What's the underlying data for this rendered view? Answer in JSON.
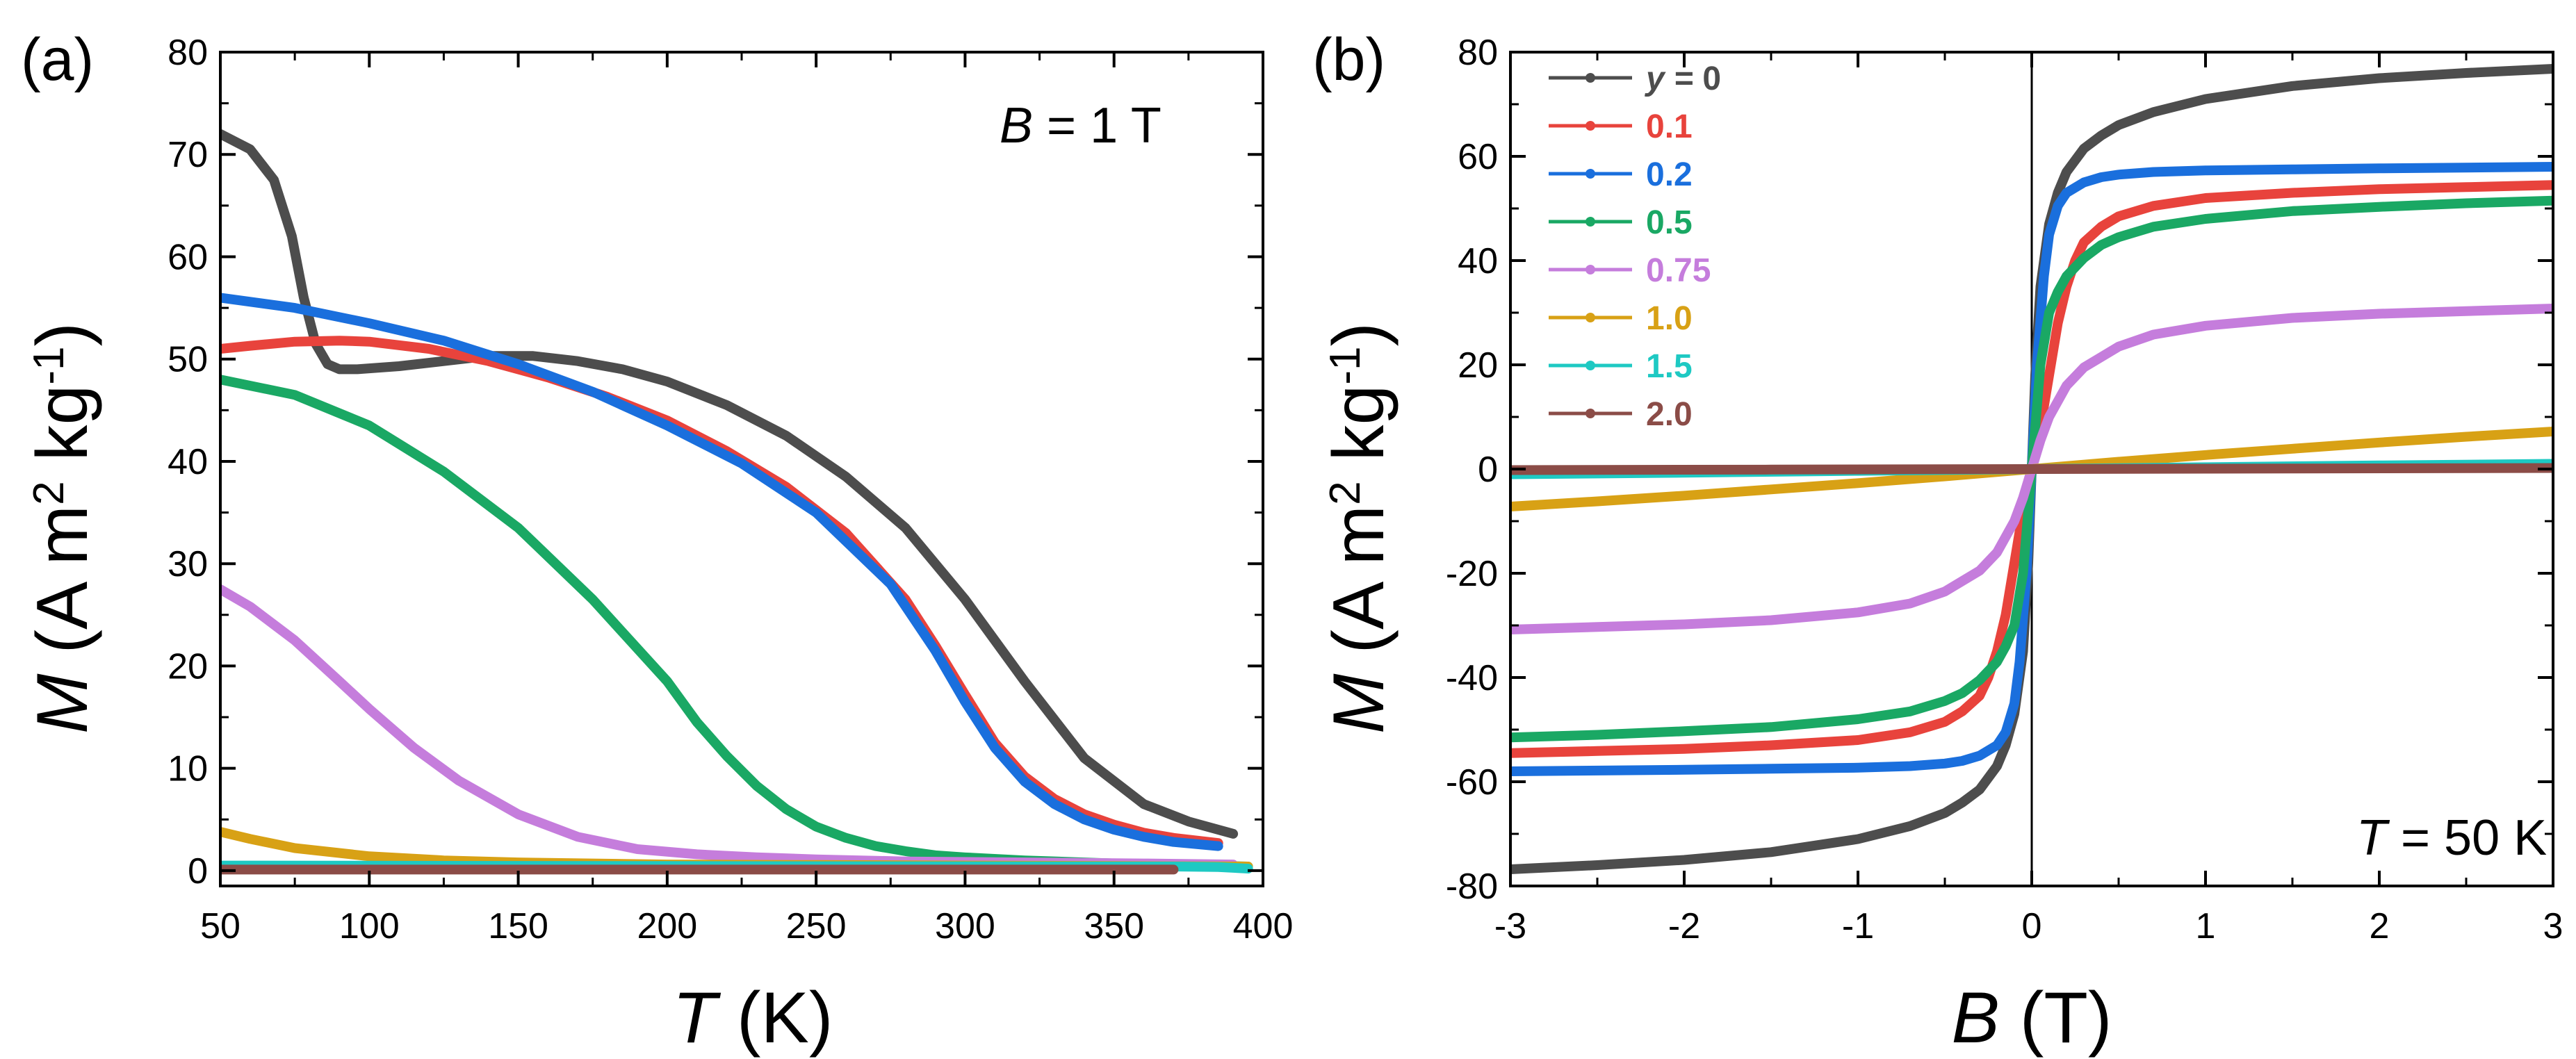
{
  "figure": {
    "panels": [
      {
        "id": "a",
        "panel_label": "(a)",
        "annotation": {
          "var": "B",
          "rest": " = 1 T"
        },
        "ylabel": {
          "var": "M",
          "pre": " (A m",
          "sup1": "2",
          "mid": " kg",
          "sup2": "-1",
          "post": ")"
        },
        "xlabel": {
          "var": "T",
          "rest": " (K)"
        }
      },
      {
        "id": "b",
        "panel_label": "(b)",
        "annotation": {
          "var": "T",
          "rest": " = 50 K"
        },
        "ylabel": {
          "var": "M",
          "pre": " (A m",
          "sup1": "2",
          "mid": " kg",
          "sup2": "-1",
          "post": ")"
        },
        "xlabel": {
          "var": "B",
          "rest": " (T)"
        },
        "legend_prefix": "y = "
      }
    ]
  },
  "chart_data": [
    {
      "type": "line",
      "title": "",
      "xlabel": "T (K)",
      "ylabel": "M (A m2 kg-1)",
      "xlim": [
        50,
        400
      ],
      "ylim": [
        -1.5,
        80
      ],
      "xticks": [
        50,
        100,
        150,
        200,
        250,
        300,
        350,
        400
      ],
      "yticks": [
        0,
        10,
        20,
        30,
        40,
        50,
        60,
        70,
        80
      ],
      "annotation": "B = 1 T",
      "series": [
        {
          "name": "0",
          "color": "#4d4d4d",
          "x": [
            50,
            60,
            68,
            74,
            78,
            82,
            86,
            90,
            96,
            110,
            125,
            140,
            155,
            170,
            185,
            200,
            220,
            240,
            260,
            280,
            300,
            320,
            340,
            360,
            375,
            390
          ],
          "values": [
            72.0,
            70.5,
            67.5,
            62,
            56,
            51.5,
            49.5,
            49.0,
            49.0,
            49.3,
            49.8,
            50.3,
            50.3,
            49.8,
            49.0,
            47.8,
            45.5,
            42.5,
            38.5,
            33.5,
            26.5,
            18.5,
            11.0,
            6.5,
            4.8,
            3.6
          ]
        },
        {
          "name": "0.1",
          "color": "#e8433c",
          "x": [
            50,
            60,
            75,
            90,
            100,
            120,
            140,
            160,
            180,
            200,
            220,
            240,
            260,
            280,
            290,
            300,
            310,
            320,
            330,
            340,
            350,
            360,
            370,
            385
          ],
          "values": [
            51.0,
            51.3,
            51.7,
            51.8,
            51.7,
            51.0,
            49.8,
            48.2,
            46.3,
            44.0,
            41.0,
            37.5,
            33.0,
            26.5,
            22.0,
            17.2,
            12.5,
            9.2,
            7.0,
            5.5,
            4.5,
            3.7,
            3.2,
            2.7
          ]
        },
        {
          "name": "0.2",
          "color": "#1a6fdd",
          "x": [
            50,
            75,
            100,
            125,
            150,
            175,
            200,
            225,
            250,
            275,
            290,
            300,
            310,
            320,
            330,
            340,
            350,
            360,
            370,
            385
          ],
          "values": [
            56.0,
            55.0,
            53.5,
            51.8,
            49.5,
            46.8,
            43.5,
            39.8,
            35.0,
            28.0,
            21.5,
            16.5,
            12.0,
            8.7,
            6.5,
            5.0,
            4.0,
            3.3,
            2.8,
            2.4
          ]
        },
        {
          "name": "0.5",
          "color": "#1aa864",
          "x": [
            50,
            75,
            100,
            125,
            150,
            175,
            200,
            210,
            220,
            230,
            240,
            250,
            260,
            270,
            280,
            290,
            300,
            320,
            340,
            360,
            380,
            395
          ],
          "values": [
            48.0,
            46.5,
            43.5,
            39.0,
            33.5,
            26.5,
            18.5,
            14.5,
            11.2,
            8.3,
            6.0,
            4.3,
            3.2,
            2.4,
            1.9,
            1.5,
            1.3,
            1.0,
            0.8,
            0.6,
            0.5,
            0.4
          ]
        },
        {
          "name": "0.75",
          "color": "#c57ddc",
          "x": [
            50,
            60,
            75,
            90,
            100,
            115,
            130,
            150,
            170,
            190,
            210,
            230,
            250,
            280,
            320,
            360,
            390
          ],
          "values": [
            27.5,
            25.8,
            22.5,
            18.5,
            15.8,
            12.0,
            8.8,
            5.5,
            3.3,
            2.1,
            1.6,
            1.3,
            1.1,
            0.9,
            0.8,
            0.7,
            0.6
          ]
        },
        {
          "name": "1.0",
          "color": "#d8a115",
          "x": [
            50,
            60,
            75,
            100,
            125,
            150,
            200,
            250,
            300,
            350,
            395
          ],
          "values": [
            3.8,
            3.1,
            2.2,
            1.4,
            1.0,
            0.8,
            0.6,
            0.55,
            0.5,
            0.45,
            0.4
          ]
        },
        {
          "name": "1.5",
          "color": "#1ec9c3",
          "x": [
            50,
            200,
            370,
            385,
            395
          ],
          "values": [
            0.5,
            0.45,
            0.4,
            0.35,
            0.2
          ]
        },
        {
          "name": "2.0",
          "color": "#8b4c47",
          "x": [
            50,
            200,
            370
          ],
          "values": [
            0.1,
            0.1,
            0.1
          ]
        }
      ]
    },
    {
      "type": "line",
      "title": "",
      "xlabel": "B (T)",
      "ylabel": "M (A m2 kg-1)",
      "xlim": [
        -3,
        3
      ],
      "ylim": [
        -80,
        80
      ],
      "xticks": [
        -3,
        -2,
        -1,
        0,
        1,
        2,
        3
      ],
      "yticks": [
        -80,
        -60,
        -40,
        -20,
        0,
        20,
        40,
        60,
        80
      ],
      "annotation": "T = 50 K",
      "legend_position": "top-left",
      "series": [
        {
          "name": "0",
          "color": "#4d4d4d",
          "x": [
            0,
            0.02,
            0.05,
            0.1,
            0.15,
            0.2,
            0.3,
            0.4,
            0.5,
            0.7,
            1.0,
            1.5,
            2.0,
            2.5,
            3.0
          ],
          "values": [
            0,
            18,
            35,
            47,
            53,
            57,
            61.5,
            64,
            66,
            68.5,
            71,
            73.5,
            75,
            76,
            76.8
          ]
        },
        {
          "name": "0.1",
          "color": "#e8433c",
          "x": [
            0,
            0.05,
            0.1,
            0.15,
            0.2,
            0.25,
            0.3,
            0.4,
            0.5,
            0.7,
            1.0,
            1.5,
            2.0,
            2.5,
            3.0
          ],
          "values": [
            0,
            8,
            18,
            28,
            35,
            40,
            43.5,
            46.5,
            48.5,
            50.5,
            52,
            53,
            53.7,
            54.1,
            54.5
          ]
        },
        {
          "name": "0.2",
          "color": "#1a6fdd",
          "x": [
            0,
            0.03,
            0.07,
            0.1,
            0.15,
            0.2,
            0.3,
            0.4,
            0.5,
            0.7,
            1.0,
            1.5,
            2.0,
            3.0
          ],
          "values": [
            0,
            20,
            37,
            45,
            50.5,
            53,
            55,
            56,
            56.5,
            57,
            57.3,
            57.5,
            57.7,
            58
          ]
        },
        {
          "name": "0.5",
          "color": "#1aa864",
          "x": [
            0,
            0.05,
            0.1,
            0.15,
            0.2,
            0.3,
            0.4,
            0.5,
            0.7,
            1.0,
            1.5,
            2.0,
            2.5,
            3.0
          ],
          "values": [
            0,
            20,
            30,
            34,
            37,
            40.5,
            43,
            44.5,
            46.5,
            48,
            49.5,
            50.3,
            51,
            51.5
          ]
        },
        {
          "name": "0.75",
          "color": "#c57ddc",
          "x": [
            0,
            0.05,
            0.1,
            0.2,
            0.3,
            0.5,
            0.7,
            1.0,
            1.5,
            2.0,
            2.5,
            3.0
          ],
          "values": [
            0,
            5.5,
            10,
            16,
            19.5,
            23.5,
            25.8,
            27.5,
            29,
            29.8,
            30.3,
            30.8
          ]
        },
        {
          "name": "1.0",
          "color": "#d8a115",
          "x": [
            0,
            0.5,
            1.0,
            1.5,
            2.0,
            2.5,
            3.0
          ],
          "values": [
            0,
            1.4,
            2.7,
            3.9,
            5.1,
            6.2,
            7.2
          ]
        },
        {
          "name": "1.5",
          "color": "#1ec9c3",
          "x": [
            0,
            1.0,
            2.0,
            3.0
          ],
          "values": [
            0,
            0.35,
            0.7,
            1.0
          ]
        },
        {
          "name": "2.0",
          "color": "#8b4c47",
          "x": [
            0,
            1.5,
            3.0
          ],
          "values": [
            0,
            0.1,
            0.2
          ]
        }
      ]
    }
  ]
}
